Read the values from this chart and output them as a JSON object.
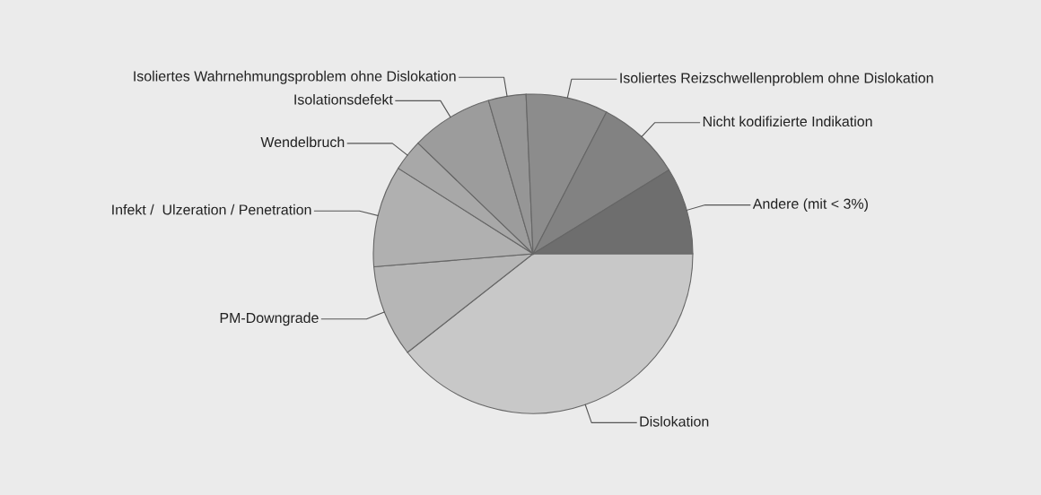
{
  "chart_data": {
    "type": "pie",
    "categories": [
      "Dislokation",
      "PM-Downgrade",
      "Infekt /  Ulzeration / Penetration",
      "Wendelbruch",
      "Isolationsdefekt",
      "Isoliertes Wahrnehmungsproblem ohne Dislokation",
      "Isoliertes Reizschwellenproblem ohne Dislokation",
      "Nicht kodifizierte Indikation",
      "Andere (mit < 3%)"
    ],
    "values": [
      39.4,
      9.3,
      10.3,
      3.2,
      8.3,
      3.8,
      8.3,
      8.6,
      8.8
    ],
    "colors": [
      "#c8c8c8",
      "#b6b6b6",
      "#b0b0b0",
      "#a8a8a8",
      "#9c9c9c",
      "#969696",
      "#8c8c8c",
      "#828282",
      "#6e6e6e"
    ]
  }
}
